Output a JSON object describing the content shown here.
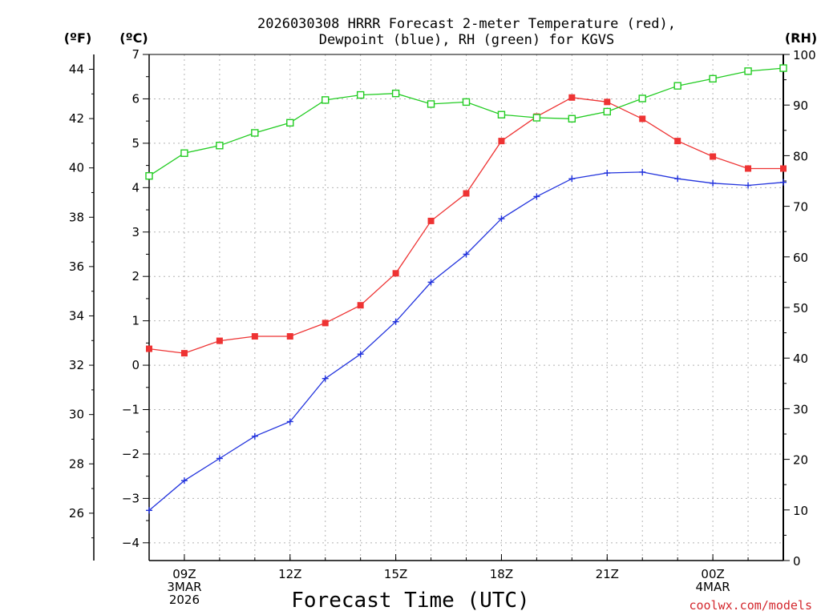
{
  "chart_data": {
    "type": "line",
    "title_lines": [
      "2026030308 HRRR Forecast 2-meter Temperature (red),",
      "Dewpoint (blue), RH (green) for KGVS"
    ],
    "xlabel": "Forecast Time (UTC)",
    "credit": "coolwx.com/models",
    "units": {
      "fahrenheit": "(ºF)",
      "celsius": "(ºC)",
      "rh": "(RH)"
    },
    "x_hours": [
      8,
      9,
      10,
      11,
      12,
      13,
      14,
      15,
      16,
      17,
      18,
      19,
      20,
      21,
      22,
      23,
      24,
      25,
      26
    ],
    "x_range": [
      8,
      26
    ],
    "x_ticks": [
      {
        "hour": 9,
        "lines": [
          "09Z",
          "3MAR",
          "2026"
        ]
      },
      {
        "hour": 12,
        "lines": [
          "12Z"
        ]
      },
      {
        "hour": 15,
        "lines": [
          "15Z"
        ]
      },
      {
        "hour": 18,
        "lines": [
          "18Z"
        ]
      },
      {
        "hour": 21,
        "lines": [
          "21Z"
        ]
      },
      {
        "hour": 24,
        "lines": [
          "00Z",
          "4MAR"
        ]
      }
    ],
    "y_celsius": {
      "range": [
        -4.4,
        7
      ],
      "ticks": [
        -4,
        -3,
        -2,
        -1,
        0,
        1,
        2,
        3,
        4,
        5,
        6,
        7
      ]
    },
    "y_fahrenheit": {
      "ticks": [
        26,
        28,
        30,
        32,
        34,
        36,
        38,
        40,
        42,
        44
      ]
    },
    "y_rh": {
      "range": [
        0,
        100
      ],
      "ticks": [
        0,
        10,
        20,
        30,
        40,
        50,
        60,
        70,
        80,
        90,
        100
      ]
    },
    "series": [
      {
        "name": "Temperature",
        "axis": "celsius",
        "color": "#ee3333",
        "marker": "filled-square",
        "values": [
          0.37,
          0.27,
          0.55,
          0.65,
          0.65,
          0.95,
          1.35,
          2.07,
          3.25,
          3.87,
          5.05,
          5.6,
          6.03,
          5.93,
          5.55,
          5.05,
          4.7,
          4.43,
          4.43
        ]
      },
      {
        "name": "Dewpoint",
        "axis": "celsius",
        "color": "#2233dd",
        "marker": "plus",
        "values": [
          -3.27,
          -2.6,
          -2.1,
          -1.6,
          -1.27,
          -0.3,
          0.25,
          0.98,
          1.87,
          2.5,
          3.3,
          3.8,
          4.2,
          4.33,
          4.35,
          4.2,
          4.1,
          4.05,
          4.12
        ]
      },
      {
        "name": "RH",
        "axis": "rh",
        "color": "#22cc22",
        "marker": "open-square",
        "values": [
          76,
          80.5,
          82,
          84.5,
          86.5,
          91,
          92,
          92.3,
          90.2,
          90.6,
          88.1,
          87.5,
          87.3,
          88.7,
          91.3,
          93.8,
          95.2,
          96.7,
          97.3
        ]
      }
    ]
  }
}
